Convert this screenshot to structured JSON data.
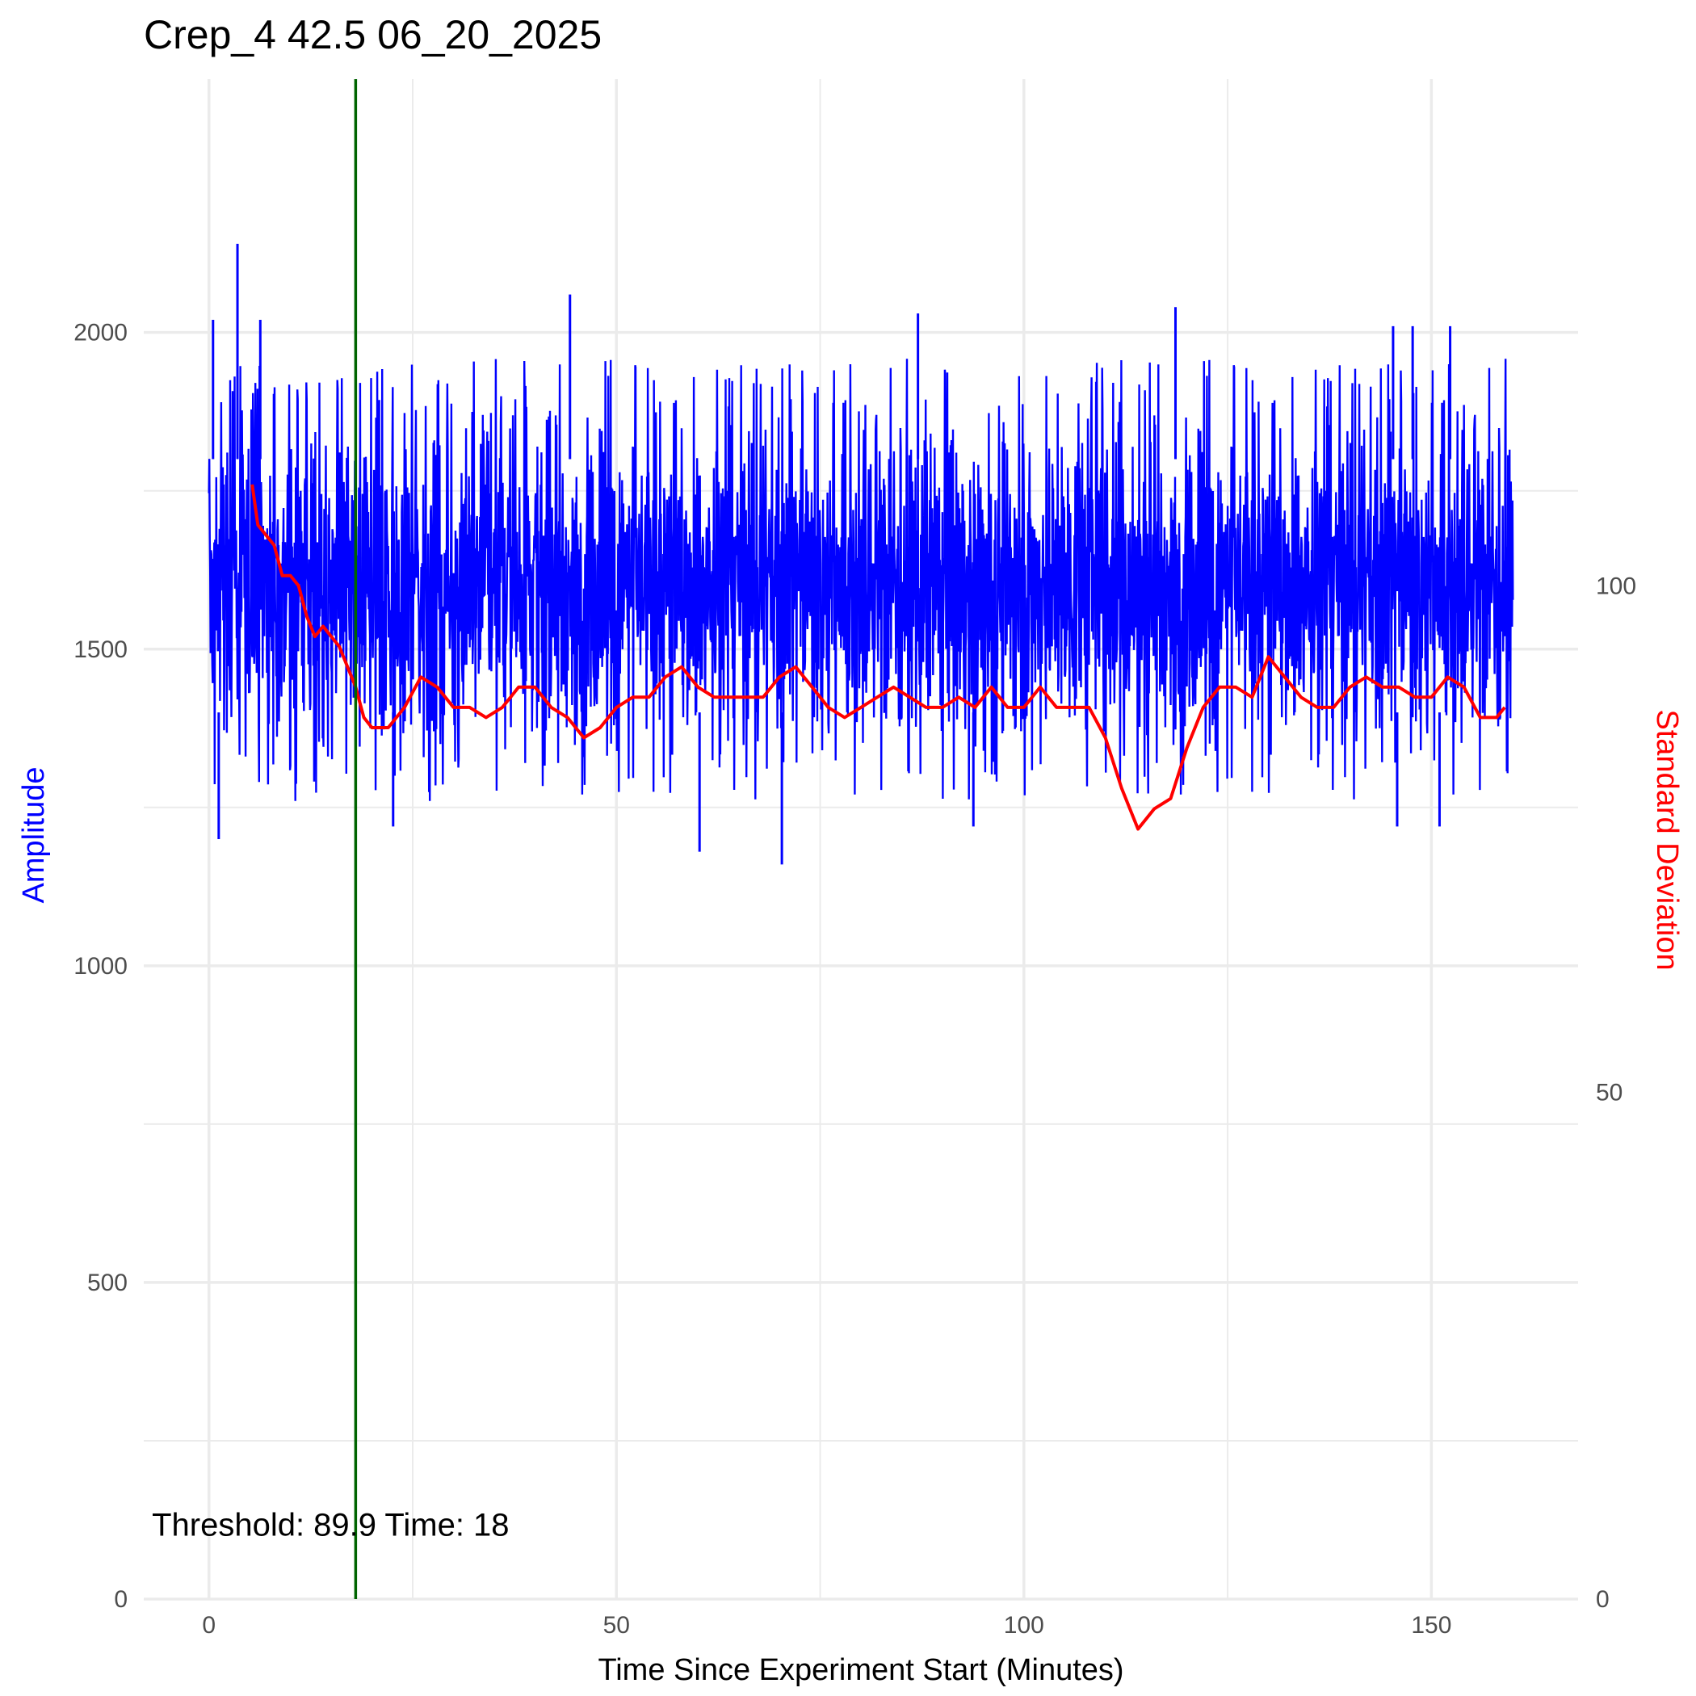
{
  "chart_data": {
    "type": "line",
    "title": "Crep_4 42.5 06_20_2025",
    "xlabel": "Time Since Experiment Start (Minutes)",
    "ylabel": "Amplitude",
    "y2label": "Standard Deviation",
    "xlim": [
      -8,
      168
    ],
    "ylim": [
      0,
      2400
    ],
    "y2lim": [
      0,
      150
    ],
    "x_ticks": [
      0,
      50,
      100,
      150
    ],
    "y_ticks": [
      0,
      500,
      1000,
      1500,
      2000
    ],
    "y2_ticks": [
      0,
      50,
      100
    ],
    "grid": true,
    "colors": {
      "amplitude": "#0000ff",
      "std": "#ff0000",
      "threshold_line": "#006400",
      "grid": "#ebebeb"
    },
    "series": [
      {
        "name": "Amplitude",
        "axis": "left",
        "color": "#0000ff",
        "duration_minutes": 160,
        "baseline": 1600,
        "typical_range": [
          1350,
          1850
        ],
        "peaks": [
          {
            "x": 0.5,
            "y": 2020
          },
          {
            "x": 3.5,
            "y": 2140
          },
          {
            "x": 6.3,
            "y": 2020
          },
          {
            "x": 44.3,
            "y": 2060
          },
          {
            "x": 87.0,
            "y": 2030
          },
          {
            "x": 118.6,
            "y": 2040
          },
          {
            "x": 145.3,
            "y": 2010
          },
          {
            "x": 147.7,
            "y": 2010
          },
          {
            "x": 152.3,
            "y": 2010
          }
        ],
        "troughs": [
          {
            "x": 1.2,
            "y": 1200
          },
          {
            "x": 22.6,
            "y": 1220
          },
          {
            "x": 60.2,
            "y": 1180
          },
          {
            "x": 70.3,
            "y": 1160
          },
          {
            "x": 93.8,
            "y": 1220
          },
          {
            "x": 145.8,
            "y": 1220
          },
          {
            "x": 151.0,
            "y": 1220
          }
        ]
      },
      {
        "name": "Standard Deviation",
        "axis": "right",
        "color": "#ff0000",
        "x": [
          5.3,
          6,
          7,
          8,
          9,
          10,
          11,
          12,
          13,
          14,
          15,
          16,
          17,
          18,
          19,
          20,
          22,
          24,
          26,
          28,
          30,
          32,
          34,
          36,
          38,
          40,
          42,
          44,
          46,
          48,
          50,
          52,
          54,
          56,
          58,
          60,
          62,
          64,
          66,
          68,
          70,
          72,
          74,
          76,
          78,
          80,
          82,
          84,
          86,
          88,
          90,
          92,
          94,
          96,
          98,
          100,
          102,
          104,
          106,
          108,
          110,
          112,
          114,
          116,
          118,
          120,
          122,
          124,
          126,
          128,
          130,
          132,
          134,
          136,
          138,
          140,
          142,
          144,
          146,
          148,
          150,
          152,
          154,
          156,
          158,
          159
        ],
        "values": [
          110,
          106,
          105,
          104,
          101,
          101,
          100,
          97,
          95,
          96,
          95,
          94,
          92,
          90,
          87,
          86,
          86,
          88,
          91,
          90,
          88,
          88,
          87,
          88,
          90,
          90,
          88,
          87,
          85,
          86,
          88,
          89,
          89,
          91,
          92,
          90,
          89,
          89,
          89,
          89,
          91,
          92,
          90,
          88,
          87,
          88,
          89,
          90,
          89,
          88,
          88,
          89,
          88,
          90,
          88,
          88,
          90,
          88,
          88,
          88,
          85,
          80,
          76,
          78,
          79,
          84,
          88,
          90,
          90,
          89,
          93,
          91,
          89,
          88,
          88,
          90,
          91,
          90,
          90,
          89,
          89,
          91,
          90,
          87,
          87,
          88
        ]
      }
    ],
    "annotation": {
      "threshold_x": 18,
      "text": "Threshold: 89.9 Time: 18",
      "text_x": -7,
      "text_y": 100
    }
  }
}
